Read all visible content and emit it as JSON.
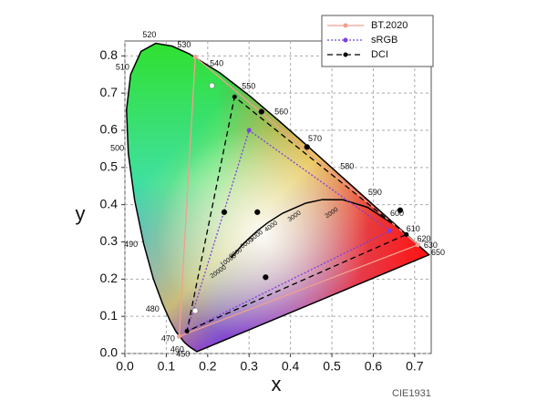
{
  "chart_data": {
    "type": "line",
    "xlabel": "x",
    "ylabel": "y",
    "watermark": "CIE1931",
    "xlim": [
      0,
      0.74
    ],
    "ylim": [
      0,
      0.84
    ],
    "xticks": [
      {
        "value": 0,
        "label": "0.0"
      },
      0.1,
      0.2,
      0.3,
      0.4,
      0.5,
      0.6,
      0.7
    ],
    "yticks": [
      {
        "value": 0,
        "label": "0.0"
      },
      0.1,
      0.2,
      0.3,
      0.4,
      0.5,
      0.6,
      0.7,
      0.8
    ],
    "grid": true,
    "legend": "top-right",
    "series": [
      {
        "name": "BT.2020",
        "color": "#f0a090",
        "linestyle": "solid",
        "x": [
          0.708,
          0.17,
          0.131,
          0.708
        ],
        "values": [
          0.292,
          0.797,
          0.046,
          0.292
        ]
      },
      {
        "name": "sRGB",
        "color": "#7a3fe0",
        "linestyle": "dotted",
        "x": [
          0.64,
          0.3,
          0.15,
          0.64
        ],
        "values": [
          0.33,
          0.6,
          0.06,
          0.33
        ]
      },
      {
        "name": "DCI",
        "color": "#000000",
        "linestyle": "dashed",
        "x": [
          0.68,
          0.265,
          0.15,
          0.68
        ],
        "values": [
          0.32,
          0.69,
          0.06,
          0.32
        ]
      }
    ],
    "locus": {
      "x": [
        0.1741,
        0.1566,
        0.144,
        0.1241,
        0.1096,
        0.0913,
        0.0687,
        0.0454,
        0.0235,
        0.0082,
        0.0039,
        0.0139,
        0.0389,
        0.0743,
        0.1142,
        0.1547,
        0.2296,
        0.3016,
        0.3731,
        0.4441,
        0.5125,
        0.5752,
        0.627,
        0.6658,
        0.6915,
        0.7079,
        0.726,
        0.7347
      ],
      "y": [
        0.005,
        0.0177,
        0.0297,
        0.0578,
        0.0868,
        0.1327,
        0.2007,
        0.295,
        0.4127,
        0.5384,
        0.6548,
        0.7502,
        0.812,
        0.8338,
        0.8262,
        0.8059,
        0.7543,
        0.6923,
        0.6245,
        0.5547,
        0.4866,
        0.4242,
        0.3725,
        0.334,
        0.3083,
        0.292,
        0.274,
        0.2653
      ],
      "wavelengths": [
        null,
        450,
        460,
        470,
        null,
        480,
        null,
        490,
        null,
        500,
        null,
        510,
        null,
        520,
        null,
        530,
        540,
        550,
        560,
        570,
        580,
        590,
        600,
        610,
        620,
        630,
        650,
        null
      ]
    },
    "planckian": {
      "x": [
        0.6528,
        0.5857,
        0.5267,
        0.477,
        0.4369,
        0.3805,
        0.3451,
        0.3221,
        0.2952,
        0.2807,
        0.2565
      ],
      "y": [
        0.3444,
        0.3931,
        0.4133,
        0.4137,
        0.4041,
        0.3768,
        0.3516,
        0.3318,
        0.3048,
        0.2884,
        0.2577
      ],
      "cct": [
        null,
        null,
        2000,
        null,
        3000,
        4000,
        5000,
        6000,
        8000,
        10000,
        20000
      ]
    },
    "markers": {
      "x": [
        0.21,
        0.17,
        0.33,
        0.44,
        0.24,
        0.32,
        0.34,
        0.665
      ],
      "y": [
        0.72,
        0.115,
        0.65,
        0.555,
        0.38,
        0.38,
        0.205,
        0.385
      ],
      "colors": [
        "#ffffff",
        "#ffffff",
        "#000000",
        "#000000",
        "#000000",
        "#000000",
        "#000000",
        "#000000"
      ]
    }
  }
}
